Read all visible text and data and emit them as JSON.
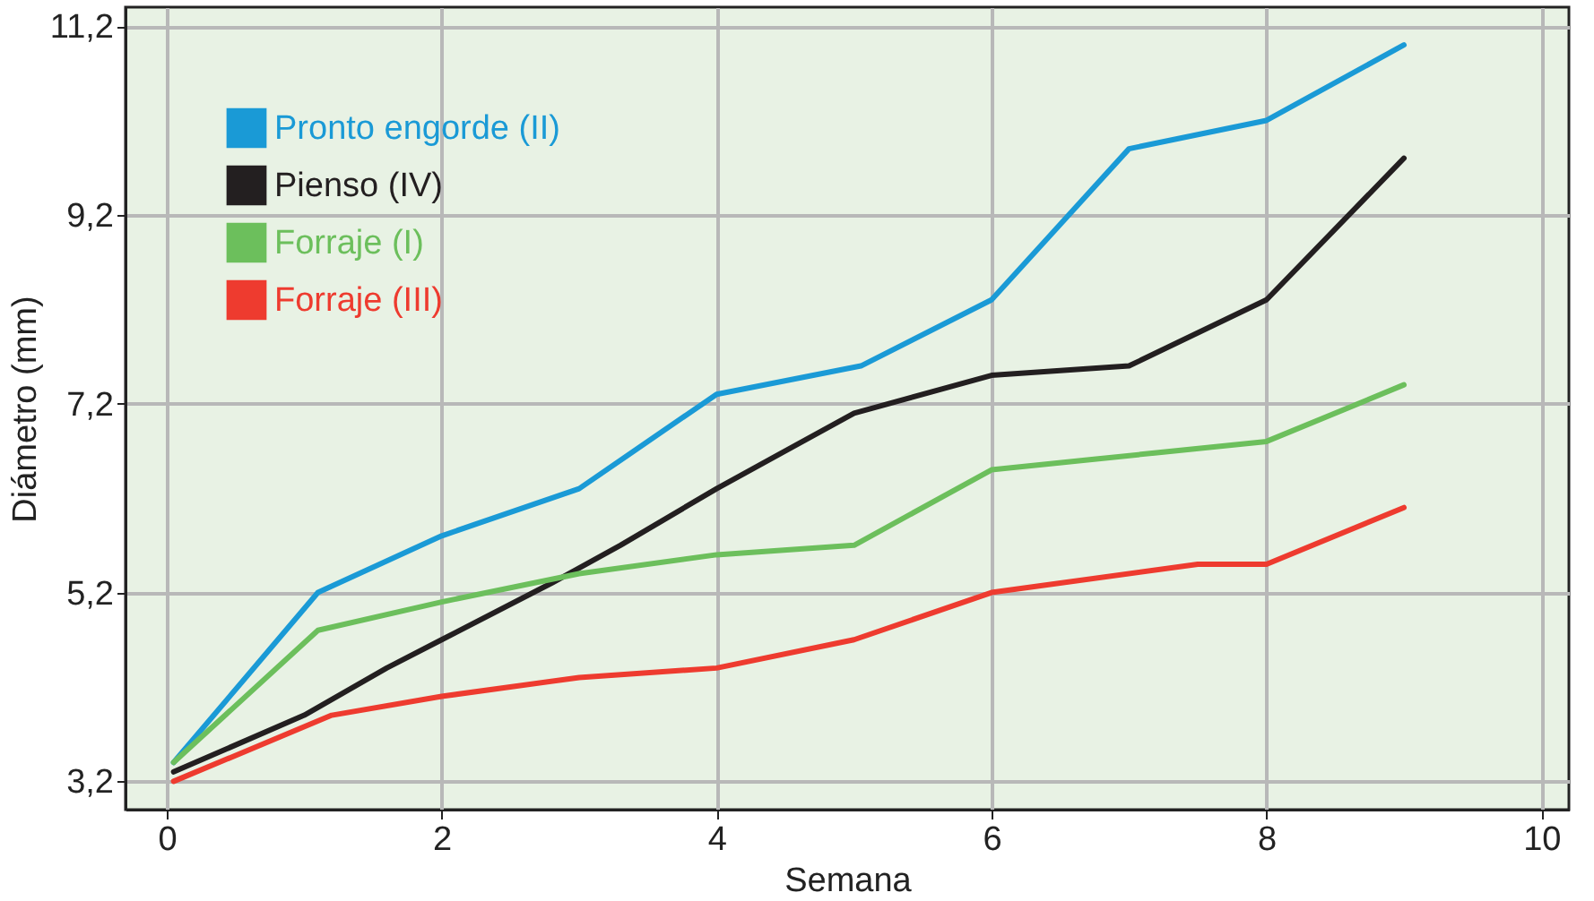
{
  "chart_data": {
    "type": "line",
    "xlabel": "Semana",
    "ylabel": "Diámetro (mm)",
    "xlim": [
      -0.3,
      10.2
    ],
    "ylim": [
      2.9,
      11.4
    ],
    "xticks": [
      0,
      2,
      4,
      6,
      8,
      10
    ],
    "yticks": [
      {
        "value": 3.2,
        "label": "3,2"
      },
      {
        "value": 5.2,
        "label": "5,2"
      },
      {
        "value": 7.2,
        "label": "7,2"
      },
      {
        "value": 9.2,
        "label": "9,2"
      },
      {
        "value": 11.2,
        "label": "11,2"
      }
    ],
    "grid": true,
    "legend": "top left",
    "marker": "none",
    "line_style": "solid",
    "series": [
      {
        "name": "Pronto engorde (II)",
        "color": "#1a9ad6",
        "x": [
          0.05,
          1.1,
          2,
          3,
          4,
          5.05,
          6,
          7,
          8,
          9
        ],
        "values": [
          3.4,
          5.2,
          5.8,
          6.3,
          7.3,
          7.6,
          8.3,
          9.9,
          10.2,
          11.0
        ]
      },
      {
        "name": "Pienso (IV)",
        "color": "#231f20",
        "x": [
          0.05,
          1,
          1.6,
          2,
          2.8,
          3.3,
          4,
          5,
          6,
          7,
          8,
          9
        ],
        "values": [
          3.3,
          3.9,
          4.4,
          4.7,
          5.3,
          5.7,
          6.3,
          7.1,
          7.5,
          7.6,
          8.3,
          9.8
        ]
      },
      {
        "name": "Forraje (I)",
        "color": "#6cbf5c",
        "x": [
          0.05,
          1.1,
          2,
          3,
          4,
          5,
          6,
          8,
          9
        ],
        "values": [
          3.4,
          4.8,
          5.1,
          5.4,
          5.6,
          5.7,
          6.5,
          6.8,
          7.4
        ]
      },
      {
        "name": "Forraje (III)",
        "color": "#ee3b2f",
        "x": [
          0.05,
          1.2,
          2,
          3,
          4,
          5,
          6,
          7.5,
          8,
          9
        ],
        "values": [
          3.2,
          3.9,
          4.1,
          4.3,
          4.4,
          4.7,
          5.2,
          5.5,
          5.5,
          6.1
        ]
      }
    ]
  }
}
